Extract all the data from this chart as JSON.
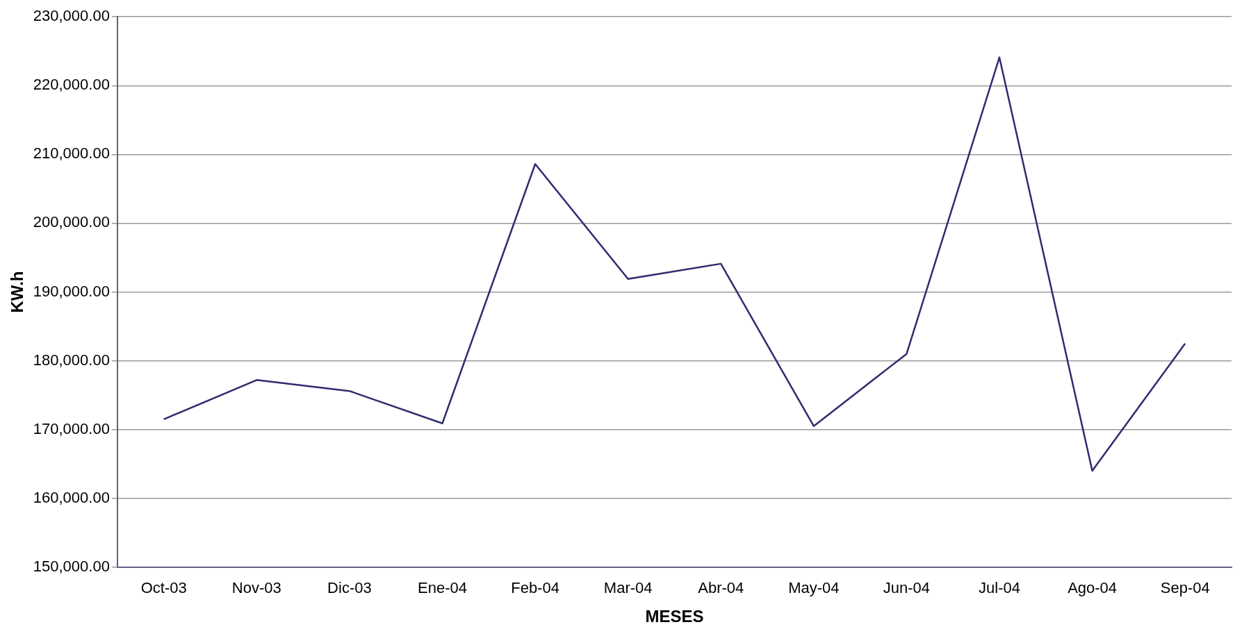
{
  "chart_data": {
    "type": "line",
    "xlabel": "MESES",
    "ylabel": "KW.h",
    "categories": [
      "Oct-03",
      "Nov-03",
      "Dic-03",
      "Ene-04",
      "Feb-04",
      "Mar-04",
      "Abr-04",
      "May-04",
      "Jun-04",
      "Jul-04",
      "Ago-04",
      "Sep-04"
    ],
    "series": [
      {
        "color": "#2e2b6e",
        "values": [
          171500,
          177200,
          175600,
          170900,
          208600,
          191900,
          194100,
          170500,
          181000,
          224100,
          164000,
          182500
        ]
      }
    ],
    "ylim": [
      150000,
      230000
    ],
    "yticks": [
      {
        "value": 150000,
        "label": "150,000.00"
      },
      {
        "value": 160000,
        "label": "160,000.00"
      },
      {
        "value": 170000,
        "label": "170,000.00"
      },
      {
        "value": 180000,
        "label": "180,000.00"
      },
      {
        "value": 190000,
        "label": "190,000.00"
      },
      {
        "value": 200000,
        "label": "200,000.00"
      },
      {
        "value": 210000,
        "label": "210,000.00"
      },
      {
        "value": 220000,
        "label": "220,000.00"
      },
      {
        "value": 230000,
        "label": "230,000.00"
      }
    ],
    "grid": "y",
    "legend": false,
    "marker": "none",
    "line_style": "solid"
  }
}
